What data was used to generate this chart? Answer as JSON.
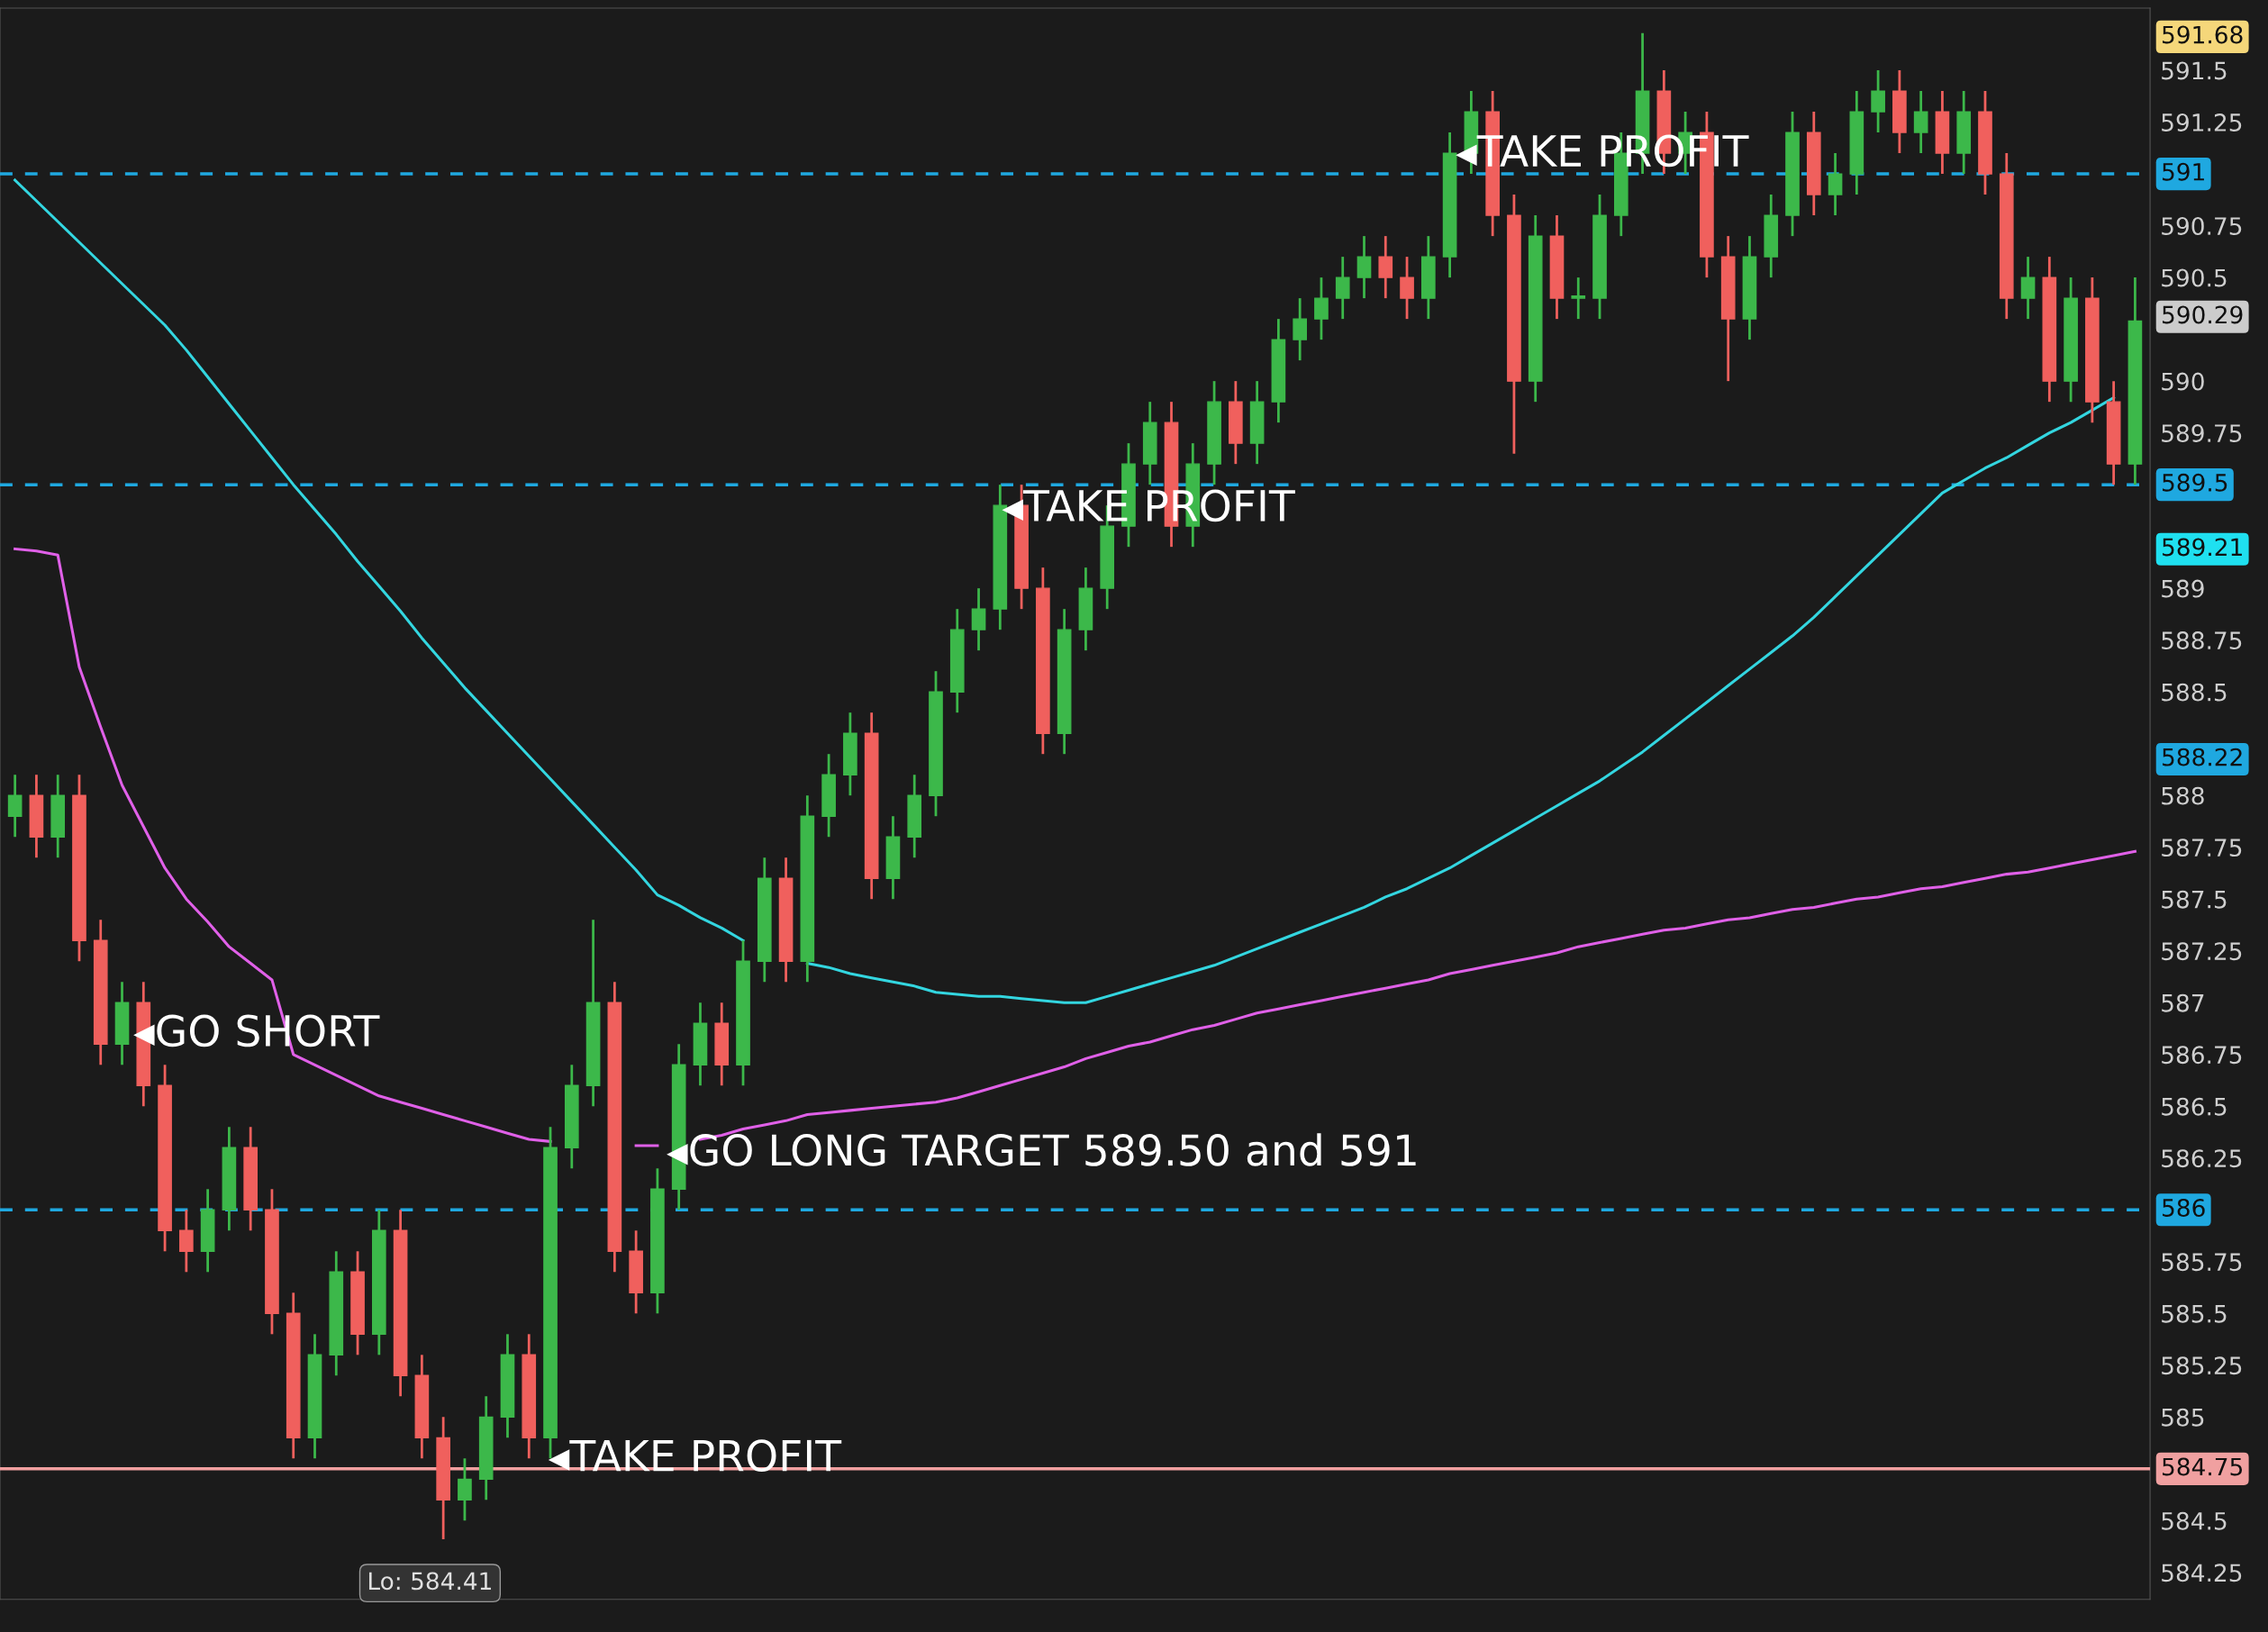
{
  "chart_data": {
    "type": "candlestick",
    "categories": [
      null,
      null,
      null,
      null,
      null,
      null,
      null,
      null,
      null,
      null,
      null,
      null,
      null,
      null,
      null,
      null,
      null,
      null,
      null,
      null,
      null,
      null,
      null,
      null,
      null,
      null,
      null,
      null,
      null,
      null,
      null,
      null,
      null,
      null,
      null,
      null,
      null,
      null,
      null,
      null,
      null,
      null,
      null,
      null,
      null,
      null,
      null,
      null,
      null,
      null,
      null,
      null,
      null,
      null,
      null,
      null,
      null,
      null,
      null,
      null,
      null,
      null,
      null,
      null,
      null,
      null,
      null,
      null,
      null,
      null,
      null,
      null,
      null,
      null,
      null,
      null,
      null,
      null,
      null,
      null,
      null,
      null,
      null,
      null,
      null,
      null,
      null,
      null,
      null,
      null,
      null,
      null,
      null,
      null,
      null,
      null,
      null,
      null,
      null,
      null
    ],
    "series": [
      {
        "ohlc": [
          [
            587.9,
            588.1,
            587.8,
            588.0
          ],
          [
            588.0,
            588.1,
            587.7,
            587.8
          ],
          [
            587.8,
            588.1,
            587.7,
            588.0
          ],
          [
            588.0,
            588.1,
            587.2,
            587.3
          ],
          [
            587.3,
            587.4,
            586.7,
            586.8
          ],
          [
            586.8,
            587.1,
            586.7,
            587.0
          ],
          [
            587.0,
            587.1,
            586.5,
            586.6
          ],
          [
            586.6,
            586.7,
            585.8,
            585.9
          ],
          [
            585.9,
            586.0,
            585.7,
            585.8
          ],
          [
            585.8,
            586.1,
            585.7,
            586.0
          ],
          [
            586.0,
            586.4,
            585.9,
            586.3
          ],
          [
            586.3,
            586.4,
            585.9,
            586.0
          ],
          [
            586.0,
            586.1,
            585.4,
            585.5
          ],
          [
            585.5,
            585.6,
            584.8,
            584.9
          ],
          [
            584.9,
            585.4,
            584.8,
            585.3
          ],
          [
            585.3,
            585.8,
            585.2,
            585.7
          ],
          [
            585.7,
            585.8,
            585.3,
            585.4
          ],
          [
            585.4,
            586.0,
            585.3,
            585.9
          ],
          [
            585.9,
            586.0,
            585.1,
            585.2
          ],
          [
            585.2,
            585.3,
            584.8,
            584.9
          ],
          [
            584.9,
            585.0,
            584.41,
            584.6
          ],
          [
            584.6,
            584.8,
            584.5,
            584.7
          ],
          [
            584.7,
            585.1,
            584.6,
            585.0
          ],
          [
            585.0,
            585.4,
            584.9,
            585.3
          ],
          [
            585.3,
            585.4,
            584.8,
            584.9
          ],
          [
            584.9,
            586.4,
            584.8,
            586.3
          ],
          [
            586.3,
            586.7,
            586.2,
            586.6
          ],
          [
            586.6,
            587.4,
            586.5,
            587.0
          ],
          [
            587.0,
            587.1,
            585.7,
            585.8
          ],
          [
            585.8,
            585.9,
            585.5,
            585.6
          ],
          [
            585.6,
            586.2,
            585.5,
            586.1
          ],
          [
            586.1,
            586.8,
            586.0,
            586.7
          ],
          [
            586.7,
            587.0,
            586.6,
            586.9
          ],
          [
            586.9,
            587.0,
            586.6,
            586.7
          ],
          [
            586.7,
            587.3,
            586.6,
            587.2
          ],
          [
            587.2,
            587.7,
            587.1,
            587.6
          ],
          [
            587.6,
            587.7,
            587.1,
            587.2
          ],
          [
            587.2,
            588.0,
            587.1,
            587.9
          ],
          [
            587.9,
            588.2,
            587.8,
            588.1
          ],
          [
            588.1,
            588.4,
            588.0,
            588.3
          ],
          [
            588.3,
            588.4,
            587.5,
            587.6
          ],
          [
            587.6,
            587.9,
            587.5,
            587.8
          ],
          [
            587.8,
            588.1,
            587.7,
            588.0
          ],
          [
            588.0,
            588.6,
            587.9,
            588.5
          ],
          [
            588.5,
            588.9,
            588.4,
            588.8
          ],
          [
            588.8,
            589.0,
            588.7,
            588.9
          ],
          [
            588.9,
            589.5,
            588.8,
            589.4
          ],
          [
            589.4,
            589.5,
            588.9,
            589.0
          ],
          [
            589.0,
            589.1,
            588.2,
            588.3
          ],
          [
            588.3,
            588.9,
            588.2,
            588.8
          ],
          [
            588.8,
            589.1,
            588.7,
            589.0
          ],
          [
            589.0,
            589.4,
            588.9,
            589.3
          ],
          [
            589.3,
            589.7,
            589.2,
            589.6
          ],
          [
            589.6,
            589.9,
            589.5,
            589.8
          ],
          [
            589.8,
            589.9,
            589.2,
            589.3
          ],
          [
            589.3,
            589.7,
            589.2,
            589.6
          ],
          [
            589.6,
            590.0,
            589.5,
            589.9
          ],
          [
            589.9,
            590.0,
            589.6,
            589.7
          ],
          [
            589.7,
            590.0,
            589.6,
            589.9
          ],
          [
            589.9,
            590.3,
            589.8,
            590.2
          ],
          [
            590.2,
            590.4,
            590.1,
            590.3
          ],
          [
            590.3,
            590.5,
            590.2,
            590.4
          ],
          [
            590.4,
            590.6,
            590.3,
            590.5
          ],
          [
            590.5,
            590.7,
            590.4,
            590.6
          ],
          [
            590.6,
            590.7,
            590.4,
            590.5
          ],
          [
            590.5,
            590.6,
            590.3,
            590.4
          ],
          [
            590.4,
            590.7,
            590.3,
            590.6
          ],
          [
            590.6,
            591.2,
            590.5,
            591.1
          ],
          [
            591.1,
            591.4,
            591.0,
            591.3
          ],
          [
            591.3,
            591.4,
            590.7,
            590.8
          ],
          [
            590.8,
            590.9,
            589.65,
            590.0
          ],
          [
            590.0,
            590.8,
            589.9,
            590.7
          ],
          [
            590.7,
            590.8,
            590.3,
            590.4
          ],
          [
            590.4,
            590.5,
            590.3,
            590.4
          ],
          [
            590.4,
            590.9,
            590.3,
            590.8
          ],
          [
            590.8,
            591.2,
            590.7,
            591.1
          ],
          [
            591.1,
            591.68,
            591.0,
            591.4
          ],
          [
            591.4,
            591.5,
            591.0,
            591.1
          ],
          [
            591.1,
            591.3,
            591.0,
            591.2
          ],
          [
            591.2,
            591.3,
            590.5,
            590.6
          ],
          [
            590.6,
            590.7,
            590.0,
            590.3
          ],
          [
            590.3,
            590.7,
            590.2,
            590.6
          ],
          [
            590.6,
            590.9,
            590.5,
            590.8
          ],
          [
            590.8,
            591.3,
            590.7,
            591.2
          ],
          [
            591.2,
            591.3,
            590.8,
            590.9
          ],
          [
            590.9,
            591.1,
            590.8,
            591.0
          ],
          [
            591.0,
            591.4,
            590.9,
            591.3
          ],
          [
            591.3,
            591.5,
            591.2,
            591.4
          ],
          [
            591.4,
            591.5,
            591.1,
            591.2
          ],
          [
            591.2,
            591.4,
            591.1,
            591.3
          ],
          [
            591.3,
            591.4,
            591.0,
            591.1
          ],
          [
            591.1,
            591.4,
            591.0,
            591.3
          ],
          [
            591.3,
            591.4,
            590.9,
            591.0
          ],
          [
            591.0,
            591.1,
            590.3,
            590.4
          ],
          [
            590.4,
            590.6,
            590.3,
            590.5
          ],
          [
            590.5,
            590.6,
            589.9,
            590.0
          ],
          [
            590.0,
            590.5,
            589.9,
            590.4
          ],
          [
            590.4,
            590.5,
            589.8,
            589.9
          ],
          [
            589.9,
            590.0,
            589.5,
            589.6
          ],
          [
            589.6,
            590.5,
            589.5,
            590.29
          ]
        ]
      },
      {
        "type": "line",
        "color": "#33d6e0",
        "values": [
          590.97,
          590.87,
          590.77,
          590.67,
          590.57,
          590.47,
          590.37,
          590.27,
          590.15,
          590.02,
          589.89,
          589.76,
          589.63,
          589.5,
          589.38,
          589.26,
          589.13,
          589.01,
          588.89,
          588.76,
          588.64,
          588.52,
          588.41,
          588.3,
          588.19,
          588.08,
          587.97,
          587.86,
          587.75,
          587.64,
          587.52,
          587.47,
          587.41,
          587.36,
          587.3,
          null,
          null,
          587.19,
          587.17,
          587.14,
          587.12,
          587.1,
          587.08,
          587.05,
          587.04,
          587.03,
          587.03,
          587.02,
          587.01,
          587.0,
          587.0,
          587.03,
          587.06,
          587.09,
          587.12,
          587.15,
          587.18,
          587.22,
          587.26,
          587.3,
          587.34,
          587.38,
          587.42,
          587.46,
          587.51,
          587.55,
          587.6,
          587.65,
          587.71,
          587.77,
          587.83,
          587.89,
          587.95,
          588.01,
          588.07,
          588.14,
          588.21,
          588.29,
          588.37,
          588.45,
          588.53,
          588.61,
          588.69,
          588.77,
          588.86,
          588.96,
          589.06,
          589.16,
          589.26,
          589.36,
          589.46,
          589.52,
          589.58,
          589.63,
          589.69,
          589.75,
          589.8,
          589.86,
          589.92,
          null
        ]
      },
      {
        "type": "line",
        "color": "#e060e8",
        "values": [
          589.19,
          589.18,
          589.16,
          588.62,
          588.33,
          588.05,
          587.85,
          587.65,
          587.5,
          587.39,
          587.27,
          587.19,
          587.11,
          586.75,
          586.7,
          586.65,
          586.6,
          586.55,
          586.52,
          586.49,
          586.46,
          586.43,
          586.4,
          586.37,
          586.34,
          586.33,
          null,
          null,
          null,
          586.31,
          586.31,
          null,
          586.34,
          586.36,
          586.39,
          586.41,
          586.43,
          586.46,
          586.47,
          586.48,
          586.49,
          586.5,
          586.51,
          586.52,
          586.54,
          586.57,
          586.6,
          586.63,
          586.66,
          586.69,
          586.73,
          586.76,
          586.79,
          586.81,
          586.84,
          586.87,
          586.89,
          586.92,
          586.95,
          586.97,
          586.99,
          587.01,
          587.03,
          587.05,
          587.07,
          587.09,
          587.11,
          587.14,
          587.16,
          587.18,
          587.2,
          587.22,
          587.24,
          587.27,
          587.29,
          587.31,
          587.33,
          587.35,
          587.36,
          587.38,
          587.4,
          587.41,
          587.43,
          587.45,
          587.46,
          587.48,
          587.5,
          587.51,
          587.53,
          587.55,
          587.56,
          587.58,
          587.6,
          587.62,
          587.63,
          587.65,
          587.67,
          587.69,
          587.71,
          587.73
        ]
      }
    ],
    "ylim": [
      584.12,
      591.8
    ],
    "yticks": [
      584.25,
      584.5,
      584.75,
      585,
      585.25,
      585.5,
      585.75,
      586,
      586.25,
      586.5,
      586.75,
      587,
      587.25,
      587.5,
      587.75,
      588,
      588.5,
      588.75,
      589,
      589.5,
      589.75,
      590,
      590.5,
      590.75,
      591,
      591.25,
      591.5
    ],
    "tick_labels": "y",
    "grid": false,
    "ref_lines": [
      {
        "axis": "y",
        "value": 591,
        "label": "591",
        "color": "#1fa8e0",
        "line_style": "dashed"
      },
      {
        "axis": "y",
        "value": 589.5,
        "label": "589.5",
        "color": "#1fa8e0",
        "line_style": "dashed"
      },
      {
        "axis": "y",
        "value": 586,
        "label": "586",
        "color": "#1fa8e0",
        "line_style": "dashed"
      },
      {
        "axis": "y",
        "value": 584.75,
        "label": "584.75",
        "color": "#f0a0a0",
        "line_style": "solid"
      }
    ],
    "annotations": [
      "◂GO SHORT",
      "◂GO LONG TARGET 589.50 and 591",
      "◂TAKE PROFIT",
      "◂TAKE PROFIT",
      "◂TAKE PROFIT",
      "Lo: 584.41",
      "591.68",
      "590.29",
      "589.21",
      "588.22"
    ]
  }
}
